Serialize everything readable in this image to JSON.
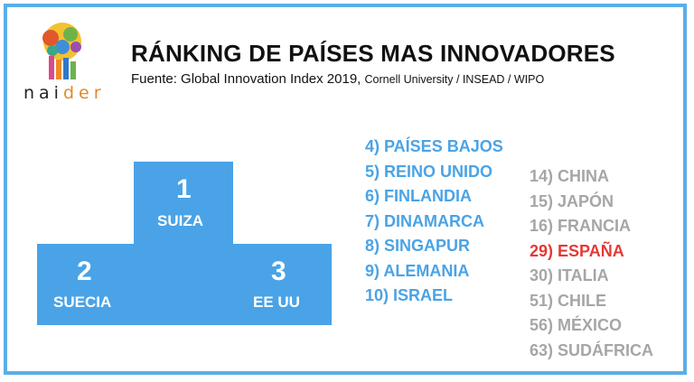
{
  "logo": {
    "text_main": "nai",
    "text_accent": "der"
  },
  "header": {
    "title": "RÁNKING DE PAÍSES MAS INNOVADORES",
    "source_main": "Fuente: Global Innovation Index 2019,",
    "source_small": "Cornell University / INSEAD / WIPO"
  },
  "podium": {
    "first": {
      "rank": "1",
      "country": "SUIZA"
    },
    "second": {
      "rank": "2",
      "country": "SUECIA"
    },
    "third": {
      "rank": "3",
      "country": "EE UU"
    }
  },
  "ranking_blue": [
    "4) PAÍSES BAJOS",
    "5) REINO UNIDO",
    "6) FINLANDIA",
    "7) DINAMARCA",
    "8) SINGAPUR",
    "9) ALEMANIA",
    "10) ISRAEL"
  ],
  "ranking_gray": [
    {
      "label": "14) CHINA",
      "highlight": false
    },
    {
      "label": "15) JAPÓN",
      "highlight": false
    },
    {
      "label": "16) FRANCIA",
      "highlight": false
    },
    {
      "label": "29) ESPAÑA",
      "highlight": true
    },
    {
      "label": "30) ITALIA",
      "highlight": false
    },
    {
      "label": "51) CHILE",
      "highlight": false
    },
    {
      "label": "56) MÉXICO",
      "highlight": false
    },
    {
      "label": "63) SUDÁFRICA",
      "highlight": false
    }
  ],
  "colors": {
    "frame": "#5aaee8",
    "podium": "#4aa3e6",
    "blue_text": "#4aa3e6",
    "gray_text": "#a6a6a6",
    "highlight": "#e53935"
  }
}
